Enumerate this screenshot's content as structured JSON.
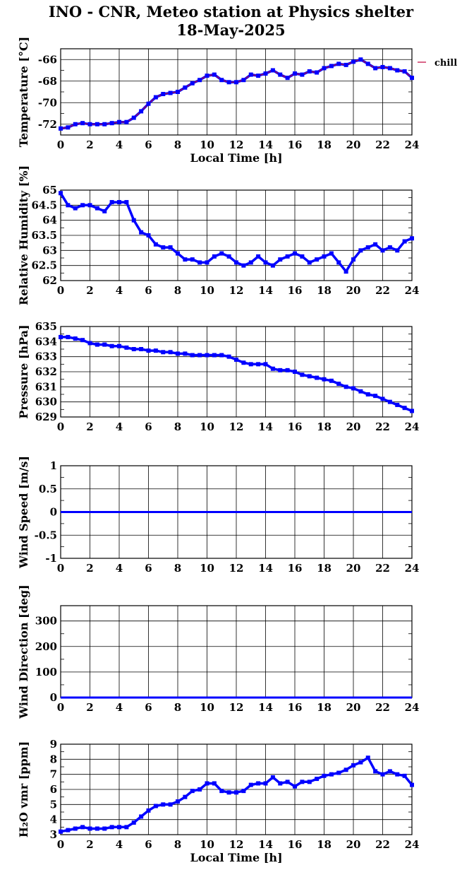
{
  "header": {
    "title_line1": "INO - CNR, Meteo station at Physics shelter",
    "title_line2": "18-May-2025"
  },
  "colors": {
    "data": "#0000ff",
    "temperature_overlay": "#c0003a",
    "grid": "#000000"
  },
  "chart_data": [
    {
      "type": "scatter",
      "id": "temperature",
      "ylabel": "Temperature [°C]",
      "xlabel": "Local Time [h]",
      "xlim": [
        0,
        24
      ],
      "ylim": [
        -73,
        -65
      ],
      "xticks": [
        0,
        2,
        4,
        6,
        8,
        10,
        12,
        14,
        16,
        18,
        20,
        22,
        24
      ],
      "yticks": [
        -72,
        -70,
        -68,
        -66
      ],
      "legend": {
        "label": "chill",
        "placement": "right-outside"
      },
      "x": [
        0,
        0.5,
        1,
        1.5,
        2,
        2.5,
        3,
        3.5,
        4,
        4.5,
        5,
        5.5,
        6,
        6.5,
        7,
        7.5,
        8,
        8.5,
        9,
        9.5,
        10,
        10.5,
        11,
        11.5,
        12,
        12.5,
        13,
        13.5,
        14,
        14.5,
        15,
        15.5,
        16,
        16.5,
        17,
        17.5,
        18,
        18.5,
        19,
        19.5,
        20,
        20.5,
        21,
        21.5,
        22,
        22.5,
        23,
        23.5,
        24
      ],
      "y": [
        -72.4,
        -72.3,
        -72.0,
        -71.9,
        -72.0,
        -72.0,
        -72.0,
        -71.9,
        -71.8,
        -71.8,
        -71.4,
        -70.8,
        -70.1,
        -69.5,
        -69.2,
        -69.1,
        -69.0,
        -68.6,
        -68.2,
        -67.9,
        -67.5,
        -67.4,
        -67.9,
        -68.1,
        -68.1,
        -67.9,
        -67.4,
        -67.5,
        -67.3,
        -67.0,
        -67.4,
        -67.7,
        -67.3,
        -67.4,
        -67.1,
        -67.2,
        -66.8,
        -66.6,
        -66.4,
        -66.5,
        -66.2,
        -66.0,
        -66.4,
        -66.8,
        -66.7,
        -66.8,
        -67.0,
        -67.1,
        -67.7
      ]
    },
    {
      "type": "scatter",
      "id": "humidity",
      "ylabel": "Relative Humidity [%]",
      "xlim": [
        0,
        24
      ],
      "ylim": [
        62,
        65
      ],
      "xticks": [
        0,
        2,
        4,
        6,
        8,
        10,
        12,
        14,
        16,
        18,
        20,
        22,
        24
      ],
      "yticks": [
        62,
        62.5,
        63,
        63.5,
        64,
        64.5,
        65
      ],
      "ytick_labels": [
        "62",
        "62.5",
        "63",
        "63.5",
        "64",
        "64.5",
        "65"
      ],
      "x": [
        0,
        0.5,
        1,
        1.5,
        2,
        2.5,
        3,
        3.5,
        4,
        4.5,
        5,
        5.5,
        6,
        6.5,
        7,
        7.5,
        8,
        8.5,
        9,
        9.5,
        10,
        10.5,
        11,
        11.5,
        12,
        12.5,
        13,
        13.5,
        14,
        14.5,
        15,
        15.5,
        16,
        16.5,
        17,
        17.5,
        18,
        18.5,
        19,
        19.5,
        20,
        20.5,
        21,
        21.5,
        22,
        22.5,
        23,
        23.5,
        24
      ],
      "y": [
        64.9,
        64.5,
        64.4,
        64.5,
        64.5,
        64.4,
        64.3,
        64.6,
        64.6,
        64.6,
        64.0,
        63.6,
        63.5,
        63.2,
        63.1,
        63.1,
        62.9,
        62.7,
        62.7,
        62.6,
        62.6,
        62.8,
        62.9,
        62.8,
        62.6,
        62.5,
        62.6,
        62.8,
        62.6,
        62.5,
        62.7,
        62.8,
        62.9,
        62.8,
        62.6,
        62.7,
        62.8,
        62.9,
        62.6,
        62.3,
        62.7,
        63.0,
        63.1,
        63.2,
        63.0,
        63.1,
        63.0,
        63.3,
        63.4
      ]
    },
    {
      "type": "scatter",
      "id": "pressure",
      "ylabel": "Pressure [hPa]",
      "xlim": [
        0,
        24
      ],
      "ylim": [
        629,
        635
      ],
      "xticks": [
        0,
        2,
        4,
        6,
        8,
        10,
        12,
        14,
        16,
        18,
        20,
        22,
        24
      ],
      "yticks": [
        629,
        630,
        631,
        632,
        633,
        634,
        635
      ],
      "x": [
        0,
        0.5,
        1,
        1.5,
        2,
        2.5,
        3,
        3.5,
        4,
        4.5,
        5,
        5.5,
        6,
        6.5,
        7,
        7.5,
        8,
        8.5,
        9,
        9.5,
        10,
        10.5,
        11,
        11.5,
        12,
        12.5,
        13,
        13.5,
        14,
        14.5,
        15,
        15.5,
        16,
        16.5,
        17,
        17.5,
        18,
        18.5,
        19,
        19.5,
        20,
        20.5,
        21,
        21.5,
        22,
        22.5,
        23,
        23.5,
        24
      ],
      "y": [
        634.3,
        634.3,
        634.2,
        634.1,
        633.9,
        633.8,
        633.8,
        633.7,
        633.7,
        633.6,
        633.5,
        633.5,
        633.4,
        633.4,
        633.3,
        633.3,
        633.2,
        633.2,
        633.1,
        633.1,
        633.1,
        633.1,
        633.1,
        633.0,
        632.8,
        632.6,
        632.5,
        632.5,
        632.5,
        632.2,
        632.1,
        632.1,
        632.0,
        631.8,
        631.7,
        631.6,
        631.5,
        631.4,
        631.2,
        631.0,
        630.9,
        630.7,
        630.5,
        630.4,
        630.2,
        630.0,
        629.8,
        629.6,
        629.4
      ]
    },
    {
      "type": "line",
      "id": "wind_speed",
      "ylabel": "Wind Speed [m/s]",
      "xlim": [
        0,
        24
      ],
      "ylim": [
        -1,
        1
      ],
      "xticks": [
        0,
        2,
        4,
        6,
        8,
        10,
        12,
        14,
        16,
        18,
        20,
        22,
        24
      ],
      "yticks": [
        -1,
        -0.5,
        0,
        0.5,
        1
      ],
      "ytick_labels": [
        "-1",
        "-0.5",
        "0",
        "0.5",
        "1"
      ],
      "x": [
        0,
        24
      ],
      "y": [
        0,
        0
      ]
    },
    {
      "type": "line",
      "id": "wind_direction",
      "ylabel": "Wind Direction [deg]",
      "xlim": [
        0,
        24
      ],
      "ylim": [
        0,
        360
      ],
      "xticks": [
        0,
        2,
        4,
        6,
        8,
        10,
        12,
        14,
        16,
        18,
        20,
        22,
        24
      ],
      "yticks": [
        0,
        100,
        200,
        300
      ],
      "x": [
        0,
        24
      ],
      "y": [
        0,
        0
      ]
    },
    {
      "type": "scatter",
      "id": "h2o",
      "ylabel": "H₂O vmr [ppm]",
      "xlabel": "Local Time [h]",
      "xlim": [
        0,
        24
      ],
      "ylim": [
        3,
        9
      ],
      "xticks": [
        0,
        2,
        4,
        6,
        8,
        10,
        12,
        14,
        16,
        18,
        20,
        22,
        24
      ],
      "yticks": [
        3,
        4,
        5,
        6,
        7,
        8,
        9
      ],
      "x": [
        0,
        0.5,
        1,
        1.5,
        2,
        2.5,
        3,
        3.5,
        4,
        4.5,
        5,
        5.5,
        6,
        6.5,
        7,
        7.5,
        8,
        8.5,
        9,
        9.5,
        10,
        10.5,
        11,
        11.5,
        12,
        12.5,
        13,
        13.5,
        14,
        14.5,
        15,
        15.5,
        16,
        16.5,
        17,
        17.5,
        18,
        18.5,
        19,
        19.5,
        20,
        20.5,
        21,
        21.5,
        22,
        22.5,
        23,
        23.5,
        24
      ],
      "y": [
        3.2,
        3.3,
        3.4,
        3.5,
        3.4,
        3.4,
        3.4,
        3.5,
        3.5,
        3.5,
        3.8,
        4.2,
        4.6,
        4.9,
        5.0,
        5.0,
        5.2,
        5.5,
        5.9,
        6.0,
        6.4,
        6.4,
        5.9,
        5.8,
        5.8,
        5.9,
        6.3,
        6.4,
        6.4,
        6.8,
        6.4,
        6.5,
        6.2,
        6.5,
        6.5,
        6.7,
        6.9,
        7.0,
        7.1,
        7.3,
        7.6,
        7.8,
        8.1,
        7.2,
        7.0,
        7.2,
        7.0,
        6.9,
        6.3
      ]
    }
  ]
}
